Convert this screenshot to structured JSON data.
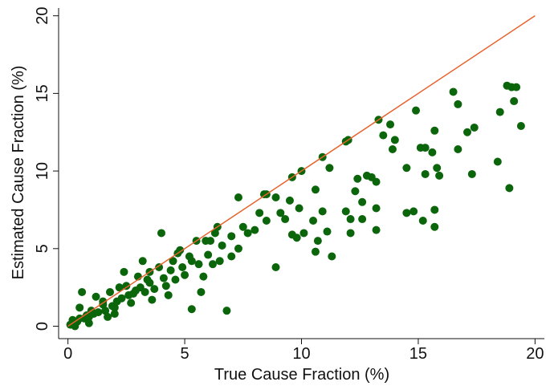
{
  "chart_data": {
    "type": "scatter",
    "xlabel": "True Cause Fraction (%)",
    "ylabel": "Estimated Cause Fraction (%)",
    "color": "#0b650b",
    "x": [
      19.0,
      19.2,
      18.8,
      19.1,
      19.4,
      18.5,
      18.9,
      18.4,
      17.4,
      17.1,
      16.7,
      16.5,
      16.7,
      17.3,
      15.7,
      15.8,
      15.9,
      15.6,
      15.3,
      15.1,
      14.9,
      15.3,
      15.7,
      15.7,
      15.2,
      14.8,
      14.5,
      14.5,
      14.0,
      13.8,
      13.9,
      13.5,
      13.3,
      13.2,
      13.0,
      12.8,
      12.4,
      13.2,
      13.2,
      12.6,
      12.6,
      12.3,
      12.1,
      12.1,
      11.9,
      12.0,
      11.9,
      11.2,
      10.9,
      10.6,
      10.9,
      11.1,
      11.3,
      10.5,
      10.7,
      10.6,
      10.1,
      9.8,
      9.6,
      9.9,
      9.5,
      9.3,
      8.9,
      9.1,
      8.9,
      8.5,
      8.4,
      8.2,
      8.0,
      7.7,
      7.5,
      7.3,
      7.3,
      7.0,
      6.8,
      6.6,
      6.3,
      6.1,
      6.2,
      5.9,
      5.8,
      5.7,
      5.3,
      5.3,
      5.0,
      4.8,
      4.5,
      4.3,
      4.0,
      3.9,
      3.6,
      3.2,
      3.0,
      2.8,
      2.4,
      2.2,
      2.0,
      1.8,
      1.5,
      1.2,
      0.8,
      0.6,
      0.5,
      0.3,
      0.1,
      9.6,
      10.0,
      8.5,
      6.4,
      5.5,
      4.7,
      3.5,
      2.5,
      1.5,
      1.0,
      0.5,
      0.2,
      0.4,
      0.7,
      0.9,
      1.1,
      1.3,
      1.6,
      1.9,
      2.1,
      2.3,
      2.6,
      2.9,
      3.1,
      3.3,
      3.5,
      3.7,
      4.1,
      4.4,
      4.6,
      4.9,
      5.2,
      5.6,
      6.0,
      6.5,
      7.0,
      2.7,
      1.7,
      0.9,
      0.3,
      3.4,
      2.0,
      4.2
    ],
    "values": [
      15.4,
      15.4,
      15.5,
      14.5,
      12.9,
      13.8,
      8.9,
      10.6,
      12.8,
      12.5,
      14.3,
      15.1,
      11.4,
      9.8,
      12.6,
      10.2,
      9.7,
      11.2,
      11.5,
      11.5,
      13.9,
      9.8,
      7.5,
      6.4,
      6.8,
      7.4,
      7.3,
      10.2,
      12.0,
      13.0,
      11.4,
      12.3,
      13.3,
      9.3,
      9.6,
      9.7,
      9.5,
      7.6,
      6.2,
      8.0,
      6.9,
      8.7,
      6.9,
      6.0,
      7.4,
      12.0,
      11.9,
      10.2,
      10.9,
      8.8,
      7.4,
      6.1,
      4.5,
      6.8,
      5.5,
      4.8,
      6.0,
      5.7,
      5.9,
      7.6,
      8.1,
      6.9,
      8.3,
      7.3,
      3.8,
      6.8,
      8.5,
      7.3,
      6.2,
      6.0,
      6.4,
      8.3,
      5.0,
      4.5,
      1.0,
      5.2,
      6.0,
      5.5,
      4.0,
      5.5,
      3.2,
      2.2,
      4.2,
      1.1,
      3.3,
      4.9,
      4.2,
      2.0,
      6.0,
      3.8,
      1.7,
      4.2,
      3.2,
      2.1,
      3.5,
      2.5,
      1.2,
      2.2,
      1.4,
      1.9,
      0.7,
      2.2,
      1.2,
      0.2,
      0.1,
      9.6,
      10.0,
      8.5,
      6.4,
      5.5,
      4.7,
      3.5,
      2.6,
      1.6,
      1.0,
      0.5,
      0.4,
      0.3,
      0.5,
      0.6,
      0.8,
      0.9,
      1.0,
      1.3,
      1.6,
      1.8,
      2.0,
      2.3,
      2.5,
      2.2,
      2.8,
      2.4,
      3.1,
      3.6,
      3.0,
      3.8,
      4.5,
      4.0,
      4.6,
      4.2,
      5.8,
      1.5,
      0.6,
      0.2,
      0.0,
      3.0,
      0.8,
      2.6
    ],
    "reference_line": {
      "x": [
        0,
        20
      ],
      "y": [
        0,
        20
      ],
      "color": "#e8622c"
    },
    "xlim": [
      -0.4,
      20.4
    ],
    "ylim": [
      -0.8,
      20.5
    ],
    "xticks": [
      0,
      5,
      10,
      15,
      20
    ],
    "yticks": [
      0,
      5,
      10,
      15,
      20
    ]
  }
}
